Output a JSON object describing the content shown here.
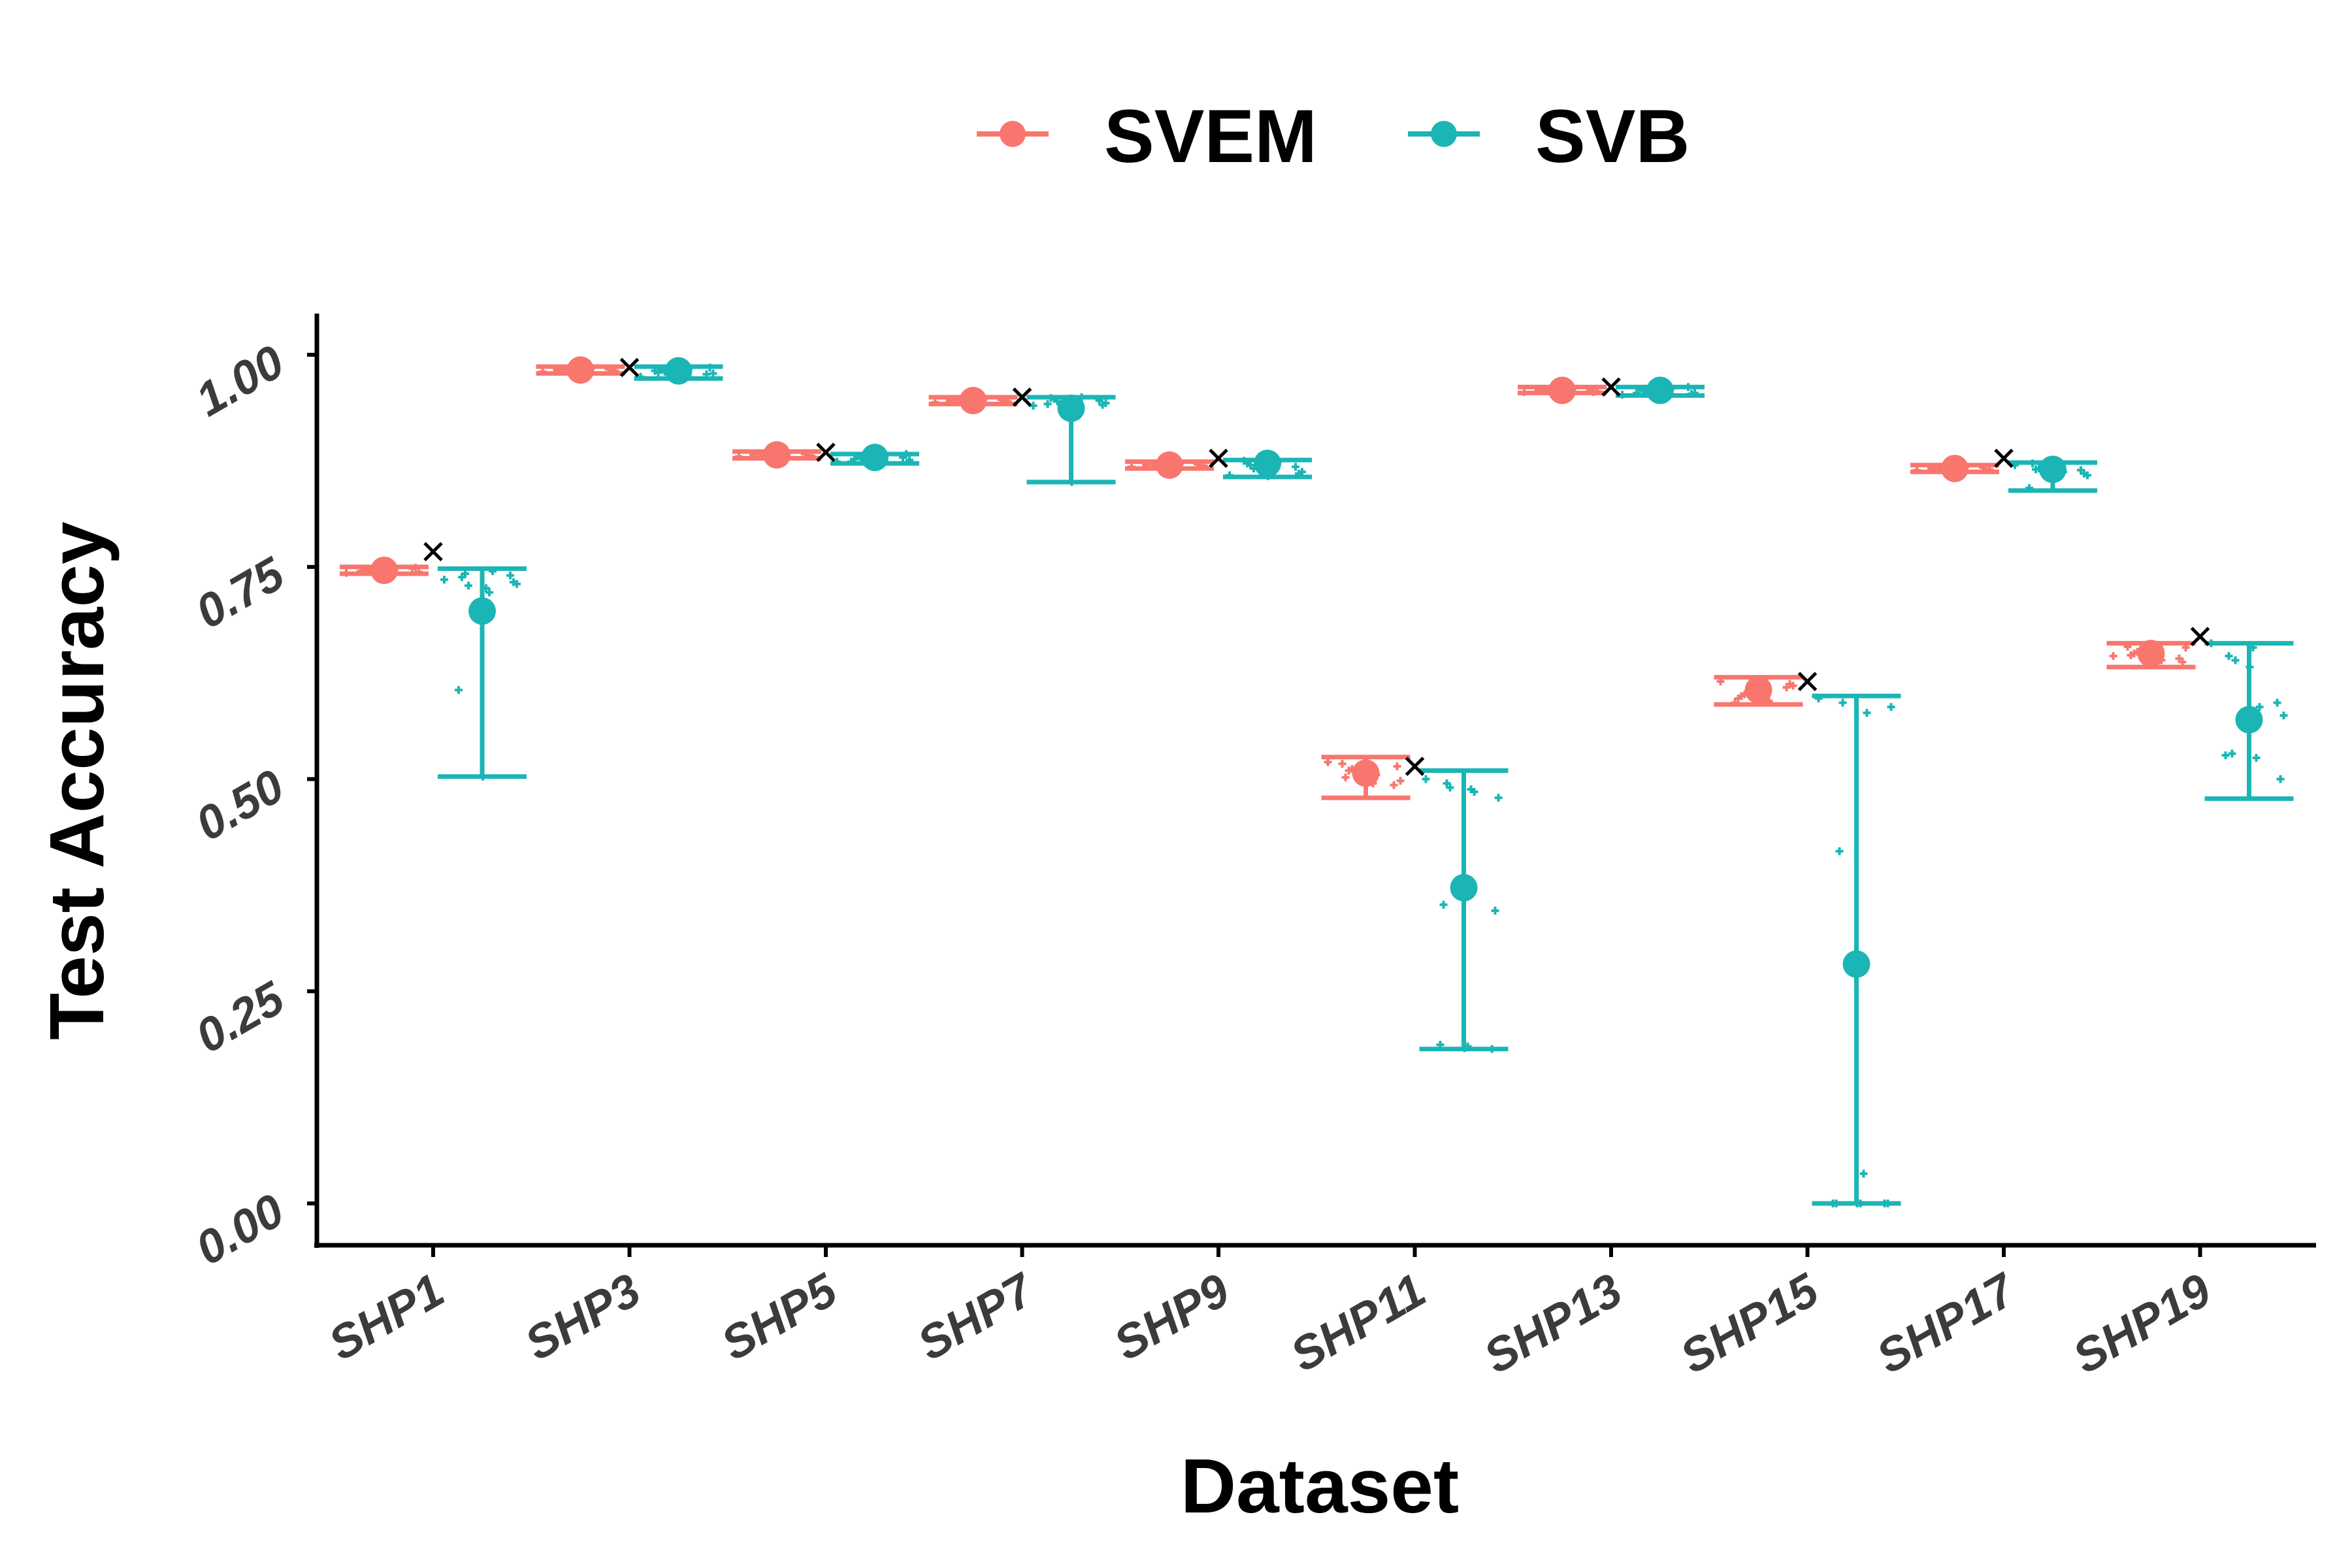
{
  "chart_data": {
    "type": "scatter",
    "title": "",
    "xlabel": "Dataset",
    "ylabel": "Test Accuracy",
    "categories": [
      "SHP1",
      "SHP3",
      "SHP5",
      "SHP7",
      "SHP9",
      "SHP11",
      "SHP13",
      "SHP15",
      "SHP17",
      "SHP19"
    ],
    "y_ticks": [
      "0.00",
      "0.25",
      "0.50",
      "0.75",
      "1.00"
    ],
    "ylim": [
      -0.05,
      1.05
    ],
    "grid": false,
    "legend_position": "top",
    "colors": {
      "SVEM": "#F8766D",
      "SVB": "#1BB5B5",
      "reference": "#000000"
    },
    "reference_marker": [
      0.768,
      0.985,
      0.885,
      0.95,
      0.878,
      0.515,
      0.962,
      0.615,
      0.878,
      0.668
    ],
    "series": [
      {
        "name": "SVEM",
        "mean": [
          0.746,
          0.982,
          0.882,
          0.946,
          0.87,
          0.507,
          0.958,
          0.605,
          0.866,
          0.648
        ],
        "low": [
          0.742,
          0.978,
          0.878,
          0.942,
          0.866,
          0.478,
          0.955,
          0.588,
          0.862,
          0.632
        ],
        "high": [
          0.75,
          0.986,
          0.886,
          0.95,
          0.874,
          0.526,
          0.962,
          0.62,
          0.87,
          0.66
        ],
        "points": [
          [
            0.743,
            0.745,
            0.748,
            0.744,
            0.747,
            0.746,
            0.749,
            0.744,
            0.746,
            0.748,
            0.745,
            0.747
          ],
          [
            0.98,
            0.982,
            0.984,
            0.981,
            0.983,
            0.982,
            0.98,
            0.984,
            0.981,
            0.983,
            0.982,
            0.983
          ],
          [
            0.88,
            0.882,
            0.884,
            0.881,
            0.883,
            0.882,
            0.88,
            0.884,
            0.881,
            0.883,
            0.882,
            0.883
          ],
          [
            0.944,
            0.946,
            0.948,
            0.945,
            0.947,
            0.946,
            0.944,
            0.948,
            0.945,
            0.947,
            0.946,
            0.947
          ],
          [
            0.868,
            0.87,
            0.872,
            0.869,
            0.871,
            0.87,
            0.868,
            0.872,
            0.869,
            0.871,
            0.87,
            0.871
          ],
          [
            0.52,
            0.512,
            0.505,
            0.498,
            0.51,
            0.495,
            0.515,
            0.502,
            0.508,
            0.493,
            0.518,
            0.5
          ],
          [
            0.956,
            0.958,
            0.96,
            0.957,
            0.959,
            0.958,
            0.956,
            0.96,
            0.957,
            0.959,
            0.958,
            0.959
          ],
          [
            0.615,
            0.6,
            0.592,
            0.61,
            0.598,
            0.605,
            0.612,
            0.595,
            0.603,
            0.608,
            0.59,
            0.606
          ],
          [
            0.864,
            0.866,
            0.868,
            0.865,
            0.867,
            0.866,
            0.864,
            0.868,
            0.865,
            0.867,
            0.866,
            0.867
          ],
          [
            0.645,
            0.65,
            0.64,
            0.655,
            0.648,
            0.652,
            0.638,
            0.646,
            0.65,
            0.642,
            0.656,
            0.649
          ]
        ]
      },
      {
        "name": "SVB",
        "mean": [
          0.698,
          0.981,
          0.879,
          0.937,
          0.872,
          0.372,
          0.958,
          0.282,
          0.865,
          0.57
        ],
        "low": [
          0.503,
          0.972,
          0.872,
          0.85,
          0.856,
          0.182,
          0.952,
          0.0,
          0.84,
          0.477
        ],
        "high": [
          0.748,
          0.986,
          0.883,
          0.95,
          0.876,
          0.51,
          0.962,
          0.598,
          0.873,
          0.66
        ],
        "points": [
          [
            0.735,
            0.728,
            0.745,
            0.73,
            0.742,
            0.72,
            0.732,
            0.738,
            0.725,
            0.74,
            0.605,
            0.503
          ],
          [
            0.974,
            0.98,
            0.984,
            0.978,
            0.982,
            0.976,
            0.985,
            0.979,
            0.983,
            0.977,
            0.981,
            0.984
          ],
          [
            0.874,
            0.878,
            0.882,
            0.876,
            0.88,
            0.875,
            0.883,
            0.877,
            0.881,
            0.879,
            0.874,
            0.882
          ],
          [
            0.94,
            0.945,
            0.95,
            0.943,
            0.948,
            0.947,
            0.941,
            0.949,
            0.944,
            0.946,
            0.942,
            0.85
          ],
          [
            0.858,
            0.866,
            0.874,
            0.862,
            0.87,
            0.876,
            0.86,
            0.872,
            0.864,
            0.868,
            0.875,
            0.857
          ],
          [
            0.5,
            0.49,
            0.485,
            0.478,
            0.495,
            0.488,
            0.345,
            0.352,
            0.185,
            0.182,
            0.187,
            0.183
          ],
          [
            0.953,
            0.956,
            0.96,
            0.955,
            0.958,
            0.961,
            0.954,
            0.959,
            0.957,
            0.962,
            0.955,
            0.96
          ],
          [
            0.595,
            0.59,
            0.578,
            0.585,
            0.415,
            0.035,
            0.0,
            0.0,
            0.0,
            0.0,
            0.0,
            0.0
          ],
          [
            0.87,
            0.866,
            0.862,
            0.858,
            0.865,
            0.868,
            0.86,
            0.872,
            0.856,
            0.864,
            0.843,
            0.862
          ],
          [
            0.66,
            0.64,
            0.585,
            0.575,
            0.53,
            0.525,
            0.5,
            0.645,
            0.655,
            0.59,
            0.528,
            0.632
          ]
        ]
      }
    ]
  }
}
